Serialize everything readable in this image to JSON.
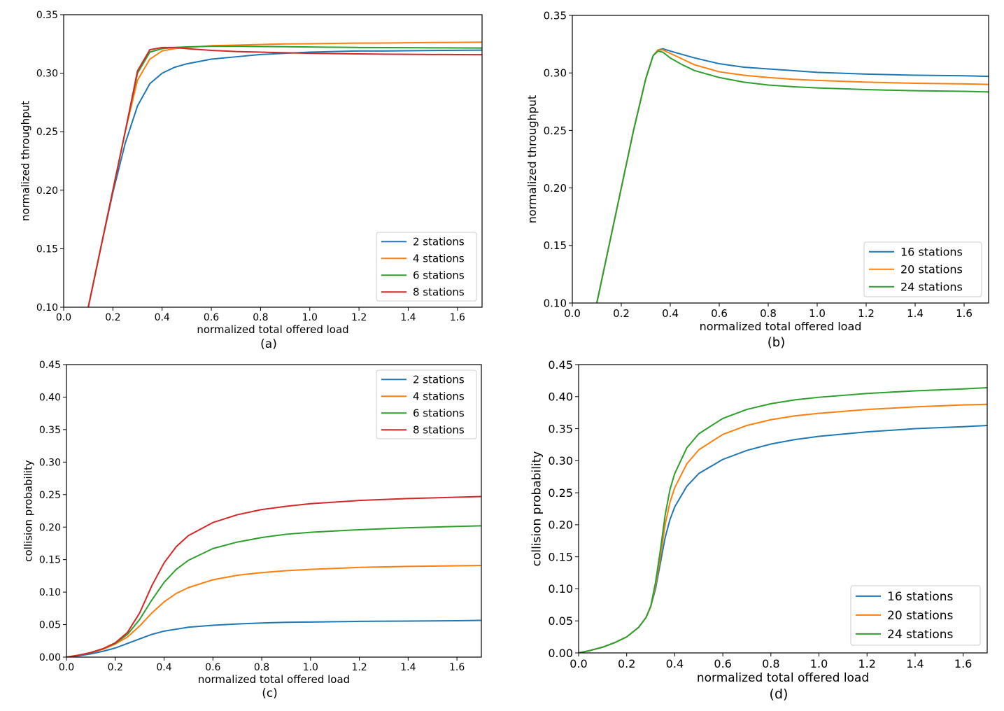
{
  "chart_data": [
    {
      "id": "a",
      "type": "line",
      "caption": "(a)",
      "xlabel": "normalized total offered load",
      "ylabel": "normalized throughput",
      "xlim": [
        0.0,
        1.7
      ],
      "ylim": [
        0.1,
        0.35
      ],
      "xticks": [
        "0.0",
        "0.2",
        "0.4",
        "0.6",
        "0.8",
        "1.0",
        "1.2",
        "1.4",
        "1.6"
      ],
      "yticks": [
        "0.10",
        "0.15",
        "0.20",
        "0.25",
        "0.30",
        "0.35"
      ],
      "grid": false,
      "legend_position": "lower-right",
      "x": [
        0.1,
        0.15,
        0.2,
        0.25,
        0.3,
        0.35,
        0.4,
        0.45,
        0.5,
        0.6,
        0.7,
        0.8,
        0.9,
        1.0,
        1.1,
        1.2,
        1.3,
        1.4,
        1.5,
        1.6,
        1.7
      ],
      "series": [
        {
          "name": "2 stations",
          "color": "#1f77b4",
          "values": [
            0.1,
            0.15,
            0.198,
            0.24,
            0.272,
            0.291,
            0.3,
            0.305,
            0.308,
            0.312,
            0.314,
            0.316,
            0.317,
            0.318,
            0.3185,
            0.319,
            0.319,
            0.3192,
            0.3194,
            0.3196,
            0.3197
          ]
        },
        {
          "name": "4 stations",
          "color": "#ff7f0e",
          "values": [
            0.1,
            0.15,
            0.2,
            0.25,
            0.294,
            0.312,
            0.319,
            0.321,
            0.322,
            0.3235,
            0.324,
            0.3245,
            0.325,
            0.3252,
            0.3255,
            0.3257,
            0.3258,
            0.326,
            0.3262,
            0.3263,
            0.3265
          ]
        },
        {
          "name": "6 stations",
          "color": "#2ca02c",
          "values": [
            0.1,
            0.15,
            0.2,
            0.25,
            0.3,
            0.318,
            0.321,
            0.322,
            0.3225,
            0.323,
            0.323,
            0.3228,
            0.3226,
            0.3224,
            0.3222,
            0.322,
            0.3219,
            0.3218,
            0.3217,
            0.3216,
            0.3215
          ]
        },
        {
          "name": "8 stations",
          "color": "#d62728",
          "values": [
            0.1,
            0.15,
            0.2,
            0.25,
            0.302,
            0.32,
            0.322,
            0.322,
            0.321,
            0.3195,
            0.3185,
            0.318,
            0.3175,
            0.317,
            0.3167,
            0.3165,
            0.3163,
            0.3161,
            0.316,
            0.3159,
            0.3158
          ]
        }
      ]
    },
    {
      "id": "b",
      "type": "line",
      "caption": "(b)",
      "xlabel": "normalized total offered load",
      "ylabel": "normalized throughput",
      "xlim": [
        0.0,
        1.7
      ],
      "ylim": [
        0.1,
        0.35
      ],
      "xticks": [
        "0.0",
        "0.2",
        "0.4",
        "0.6",
        "0.8",
        "1.0",
        "1.2",
        "1.4",
        "1.6"
      ],
      "yticks": [
        "0.10",
        "0.15",
        "0.20",
        "0.25",
        "0.30",
        "0.35"
      ],
      "grid": false,
      "legend_position": "lower-right",
      "x": [
        0.1,
        0.15,
        0.2,
        0.25,
        0.3,
        0.33,
        0.35,
        0.37,
        0.4,
        0.45,
        0.5,
        0.6,
        0.7,
        0.8,
        0.9,
        1.0,
        1.2,
        1.4,
        1.6,
        1.7
      ],
      "series": [
        {
          "name": "16 stations",
          "color": "#1f77b4",
          "values": [
            0.1,
            0.15,
            0.2,
            0.25,
            0.295,
            0.315,
            0.32,
            0.321,
            0.319,
            0.316,
            0.313,
            0.308,
            0.305,
            0.3035,
            0.302,
            0.3005,
            0.299,
            0.298,
            0.2975,
            0.297
          ]
        },
        {
          "name": "20 stations",
          "color": "#ff7f0e",
          "values": [
            0.1,
            0.15,
            0.2,
            0.25,
            0.295,
            0.315,
            0.32,
            0.32,
            0.317,
            0.312,
            0.307,
            0.301,
            0.298,
            0.296,
            0.2945,
            0.2935,
            0.292,
            0.291,
            0.2905,
            0.29
          ]
        },
        {
          "name": "24 stations",
          "color": "#2ca02c",
          "values": [
            0.1,
            0.15,
            0.2,
            0.25,
            0.295,
            0.315,
            0.319,
            0.318,
            0.313,
            0.307,
            0.302,
            0.296,
            0.292,
            0.2895,
            0.288,
            0.287,
            0.2855,
            0.2845,
            0.284,
            0.2835
          ]
        }
      ]
    },
    {
      "id": "c",
      "type": "line",
      "caption": "(c)",
      "xlabel": "normalized total offered load",
      "ylabel": "collision probability",
      "xlim": [
        0.0,
        1.7
      ],
      "ylim": [
        0.0,
        0.45
      ],
      "xticks": [
        "0.0",
        "0.2",
        "0.4",
        "0.6",
        "0.8",
        "1.0",
        "1.2",
        "1.4",
        "1.6"
      ],
      "yticks": [
        "0.00",
        "0.05",
        "0.10",
        "0.15",
        "0.20",
        "0.25",
        "0.30",
        "0.35",
        "0.40",
        "0.45"
      ],
      "grid": false,
      "legend_position": "top-right",
      "x": [
        0.0,
        0.05,
        0.1,
        0.15,
        0.2,
        0.25,
        0.3,
        0.35,
        0.4,
        0.45,
        0.5,
        0.6,
        0.7,
        0.8,
        0.9,
        1.0,
        1.2,
        1.4,
        1.6,
        1.7
      ],
      "series": [
        {
          "name": "2 stations",
          "color": "#1f77b4",
          "values": [
            0.0,
            0.002,
            0.005,
            0.009,
            0.014,
            0.021,
            0.028,
            0.035,
            0.04,
            0.043,
            0.046,
            0.049,
            0.051,
            0.0525,
            0.0535,
            0.054,
            0.055,
            0.0555,
            0.056,
            0.0565
          ]
        },
        {
          "name": "4 stations",
          "color": "#ff7f0e",
          "values": [
            0.0,
            0.003,
            0.007,
            0.012,
            0.02,
            0.031,
            0.048,
            0.068,
            0.085,
            0.098,
            0.107,
            0.119,
            0.126,
            0.13,
            0.133,
            0.135,
            0.138,
            0.1395,
            0.1405,
            0.141
          ]
        },
        {
          "name": "6 stations",
          "color": "#2ca02c",
          "values": [
            0.0,
            0.003,
            0.007,
            0.013,
            0.021,
            0.035,
            0.058,
            0.088,
            0.115,
            0.135,
            0.149,
            0.167,
            0.177,
            0.184,
            0.189,
            0.192,
            0.196,
            0.199,
            0.201,
            0.202
          ]
        },
        {
          "name": "8 stations",
          "color": "#d62728",
          "values": [
            0.0,
            0.003,
            0.007,
            0.013,
            0.022,
            0.038,
            0.068,
            0.11,
            0.145,
            0.17,
            0.187,
            0.207,
            0.219,
            0.227,
            0.232,
            0.236,
            0.241,
            0.244,
            0.246,
            0.247
          ]
        }
      ]
    },
    {
      "id": "d",
      "type": "line",
      "caption": "(d)",
      "xlabel": "normalized total offered load",
      "ylabel": "collision probability",
      "xlim": [
        0.0,
        1.7
      ],
      "ylim": [
        0.0,
        0.45
      ],
      "xticks": [
        "0.0",
        "0.2",
        "0.4",
        "0.6",
        "0.8",
        "1.0",
        "1.2",
        "1.4",
        "1.6"
      ],
      "yticks": [
        "0.00",
        "0.05",
        "0.10",
        "0.15",
        "0.20",
        "0.25",
        "0.30",
        "0.35",
        "0.40",
        "0.45"
      ],
      "grid": false,
      "legend_position": "lower-right",
      "x": [
        0.0,
        0.05,
        0.1,
        0.15,
        0.2,
        0.25,
        0.28,
        0.3,
        0.32,
        0.34,
        0.36,
        0.38,
        0.4,
        0.45,
        0.5,
        0.6,
        0.7,
        0.8,
        0.9,
        1.0,
        1.2,
        1.4,
        1.6,
        1.7
      ],
      "series": [
        {
          "name": "16 stations",
          "color": "#1f77b4",
          "values": [
            0.0,
            0.004,
            0.009,
            0.016,
            0.025,
            0.04,
            0.055,
            0.072,
            0.1,
            0.14,
            0.18,
            0.208,
            0.228,
            0.26,
            0.28,
            0.302,
            0.316,
            0.326,
            0.333,
            0.338,
            0.345,
            0.35,
            0.353,
            0.355
          ]
        },
        {
          "name": "20 stations",
          "color": "#ff7f0e",
          "values": [
            0.0,
            0.004,
            0.009,
            0.016,
            0.025,
            0.04,
            0.055,
            0.072,
            0.105,
            0.15,
            0.2,
            0.235,
            0.258,
            0.295,
            0.317,
            0.341,
            0.355,
            0.364,
            0.37,
            0.374,
            0.38,
            0.384,
            0.387,
            0.388
          ]
        },
        {
          "name": "24 stations",
          "color": "#2ca02c",
          "values": [
            0.0,
            0.004,
            0.009,
            0.016,
            0.025,
            0.04,
            0.055,
            0.073,
            0.11,
            0.16,
            0.215,
            0.255,
            0.28,
            0.32,
            0.342,
            0.366,
            0.38,
            0.389,
            0.395,
            0.399,
            0.405,
            0.409,
            0.412,
            0.414
          ]
        }
      ]
    }
  ]
}
